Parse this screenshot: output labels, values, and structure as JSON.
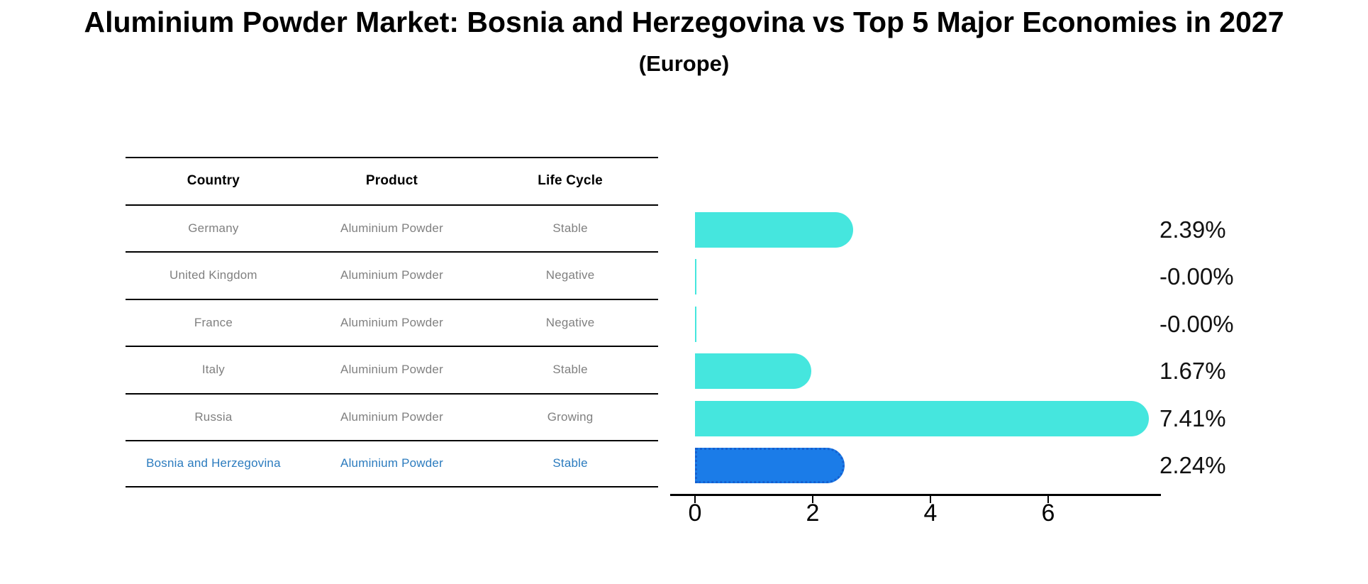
{
  "title": "Aluminium Powder Market: Bosnia and Herzegovina vs Top 5 Major Economies in 2027",
  "subtitle": "(Europe)",
  "table": {
    "headers": [
      "Country",
      "Product",
      "Life Cycle"
    ],
    "rows": [
      {
        "country": "Germany",
        "product": "Aluminium Powder",
        "life_cycle": "Stable"
      },
      {
        "country": "United Kingdom",
        "product": "Aluminium Powder",
        "life_cycle": "Negative"
      },
      {
        "country": "France",
        "product": "Aluminium Powder",
        "life_cycle": "Negative"
      },
      {
        "country": "Italy",
        "product": "Aluminium Powder",
        "life_cycle": "Stable"
      },
      {
        "country": "Russia",
        "product": "Aluminium Powder",
        "life_cycle": "Growing"
      },
      {
        "country": "Bosnia and Herzegovina",
        "product": "Aluminium Powder",
        "life_cycle": "Stable"
      }
    ]
  },
  "chart_data": {
    "type": "bar",
    "orientation": "horizontal",
    "title": "Aluminium Powder Market: Bosnia and Herzegovina vs Top 5 Major Economies in 2027 (Europe)",
    "categories": [
      "Germany",
      "United Kingdom",
      "France",
      "Italy",
      "Russia",
      "Bosnia and Herzegovina"
    ],
    "values": [
      2.39,
      -0.0,
      -0.0,
      1.67,
      7.41,
      2.24
    ],
    "value_labels": [
      "2.39%",
      "-0.00%",
      "-0.00%",
      "1.67%",
      "7.41%",
      "2.24%"
    ],
    "xticks": [
      "0",
      "2",
      "4",
      "6"
    ],
    "xlim": [
      0,
      7.9
    ],
    "grid": false,
    "legend": false,
    "highlight_index": 5,
    "colors": {
      "bar": "#45E6DE",
      "highlight_bar": "#1B7CE8",
      "highlight_border": "#1560D0",
      "highlight_text": "#2B7BBE",
      "table_text": "#808080"
    }
  }
}
